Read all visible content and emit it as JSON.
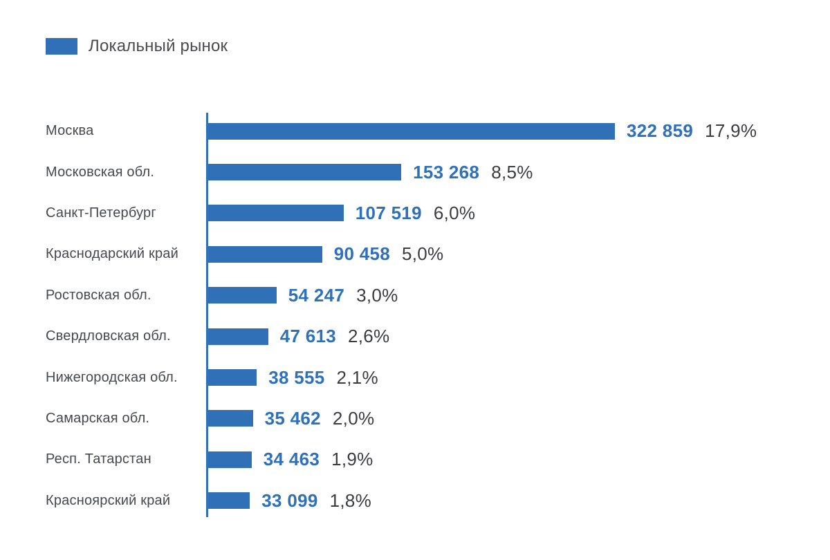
{
  "legend": {
    "label": "Локальный рынок"
  },
  "colors": {
    "bar": "#2F70B6",
    "axis": "#2F70B6",
    "value_text": "#2E71B8",
    "percent_text": "#3A3C40",
    "category_text": "#45484C",
    "legend_text": "#4A4B4E",
    "background": "#FFFFFF"
  },
  "chart_data": {
    "type": "bar",
    "orientation": "horizontal",
    "title": "",
    "xlabel": "",
    "ylabel": "",
    "legend_entries": [
      "Локальный рынок"
    ],
    "legend_position": "top-left",
    "grid": false,
    "xlim": [
      0,
      322859
    ],
    "categories": [
      "Москва",
      "Московская обл.",
      "Санкт-Петербург",
      "Краснодарский край",
      "Ростовская обл.",
      "Свердловская обл.",
      "Нижегородская обл.",
      "Самарская обл.",
      "Респ. Татарстан",
      "Красноярский край"
    ],
    "values": [
      322859,
      153268,
      107519,
      90458,
      54247,
      47613,
      38555,
      35462,
      34463,
      33099
    ],
    "percents": [
      17.9,
      8.5,
      6.0,
      5.0,
      3.0,
      2.6,
      2.1,
      2.0,
      1.9,
      1.8
    ],
    "value_labels": [
      "322 859",
      "153 268",
      "107 519",
      "90 458",
      "54 247",
      "47 613",
      "38 555",
      "35 462",
      "34 463",
      "33 099"
    ],
    "percent_labels": [
      "17,9%",
      "8,5%",
      "6,0%",
      "5,0%",
      "3,0%",
      "2,6%",
      "2,1%",
      "2,0%",
      "1,9%",
      "1,8%"
    ]
  }
}
